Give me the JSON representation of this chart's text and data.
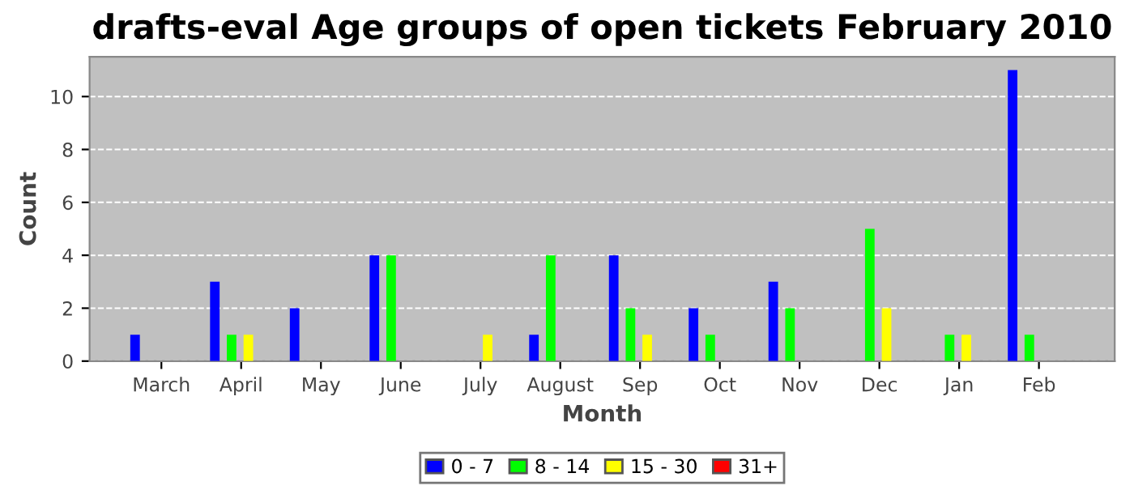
{
  "chart_data": {
    "type": "bar",
    "title": "drafts-eval Age groups of open tickets February 2010",
    "xlabel": "Month",
    "ylabel": "Count",
    "categories": [
      "March",
      "April",
      "May",
      "June",
      "July",
      "August",
      "Sep",
      "Oct",
      "Nov",
      "Dec",
      "Jan",
      "Feb"
    ],
    "series": [
      {
        "name": "0 - 7",
        "color": "#0000ff",
        "values": [
          1,
          3,
          2,
          4,
          0,
          1,
          4,
          2,
          3,
          0,
          0,
          11
        ]
      },
      {
        "name": "8 - 14",
        "color": "#00ff00",
        "values": [
          0,
          1,
          0,
          4,
          0,
          4,
          2,
          1,
          2,
          5,
          1,
          1
        ]
      },
      {
        "name": "15 - 30",
        "color": "#ffff00",
        "values": [
          0,
          1,
          0,
          0,
          1,
          0,
          1,
          0,
          0,
          2,
          1,
          0
        ]
      },
      {
        "name": "31+",
        "color": "#ff0000",
        "values": [
          0,
          0,
          0,
          0,
          0,
          0,
          0,
          0,
          0,
          0,
          0,
          0
        ]
      }
    ],
    "ylim": [
      0,
      11.5
    ],
    "yticks": [
      0,
      2,
      4,
      6,
      8,
      10
    ],
    "grid": "y",
    "legend": "bottom"
  }
}
